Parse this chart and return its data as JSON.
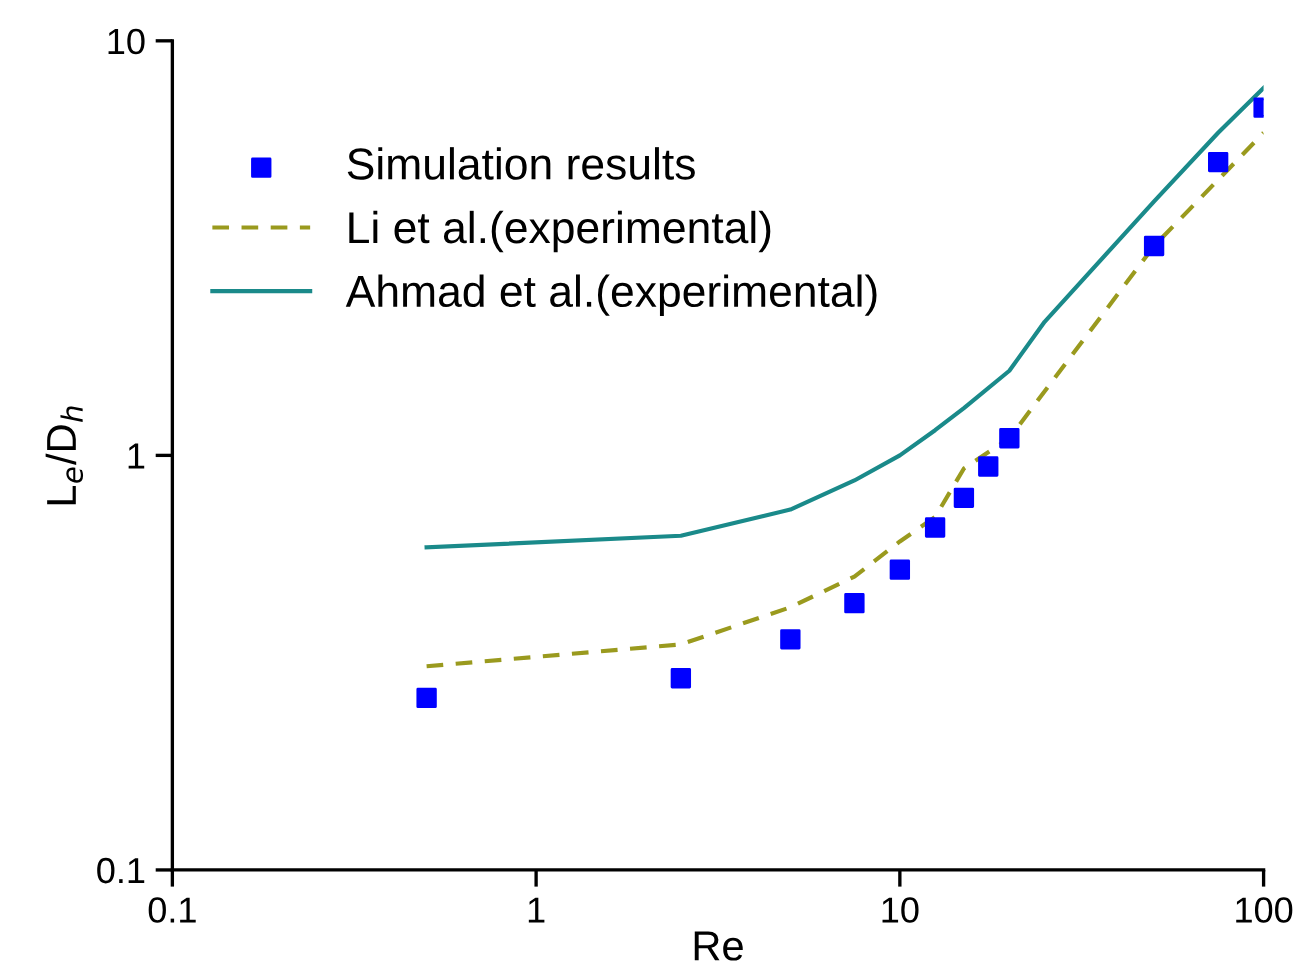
{
  "chart_data": {
    "type": "scatter",
    "xlabel": "Re",
    "ylabel": "L$_{e}$/D$_{h}$",
    "log": "xy",
    "xlim": [
      0.1,
      100
    ],
    "ylim": [
      0.1,
      10
    ],
    "xticks": [
      0.1,
      1,
      10,
      100
    ],
    "yticks": [
      0.1,
      1,
      10
    ],
    "grid": false,
    "legend": "top left",
    "series": [
      {
        "name": "Simulation results",
        "marker": "square",
        "color": "#0000ff",
        "x": [
          0.5,
          2.5,
          5,
          7.5,
          10,
          12.5,
          15,
          17.5,
          20,
          50,
          75,
          100
        ],
        "values": [
          0.26,
          0.29,
          0.36,
          0.44,
          0.53,
          0.67,
          0.79,
          0.94,
          1.1,
          3.2,
          5.1,
          6.9
        ]
      },
      {
        "name": "Li et al.(experimental)",
        "type": "line",
        "line_style": "dashed",
        "color": "#9a9a1e",
        "x": [
          0.5,
          2.5,
          5,
          7.5,
          10,
          12.5,
          15,
          20,
          50,
          100
        ],
        "values": [
          0.31,
          0.35,
          0.43,
          0.51,
          0.62,
          0.71,
          0.93,
          1.1,
          3.2,
          6.0
        ]
      },
      {
        "name": "Ahmad et al.(experimental)",
        "type": "line",
        "line_style": "solid",
        "color": "#1a8a8a",
        "x": [
          0.5,
          2.5,
          5,
          7.5,
          10,
          12.5,
          15,
          20,
          25,
          50,
          75,
          100
        ],
        "values": [
          0.6,
          0.64,
          0.74,
          0.87,
          1.0,
          1.15,
          1.3,
          1.6,
          2.1,
          4.1,
          6.0,
          7.7
        ]
      }
    ]
  }
}
